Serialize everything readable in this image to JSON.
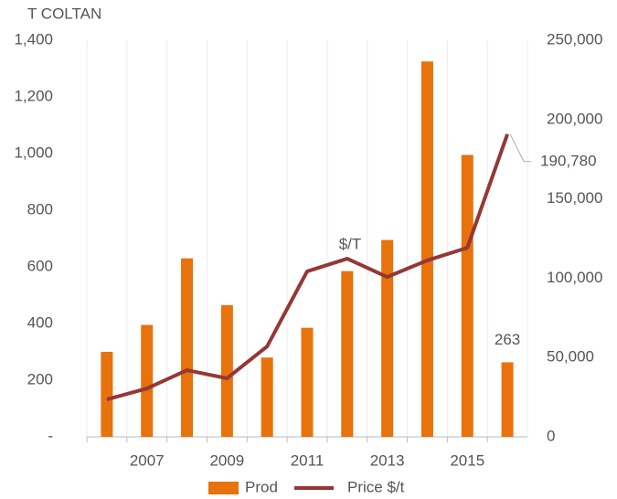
{
  "chart_data": {
    "type": "bar",
    "y_axis_label": "T COLTAN",
    "annotation": "$/T",
    "categories": [
      null,
      "2007",
      null,
      "2009",
      null,
      "2011",
      null,
      "2013",
      null,
      "2015",
      null
    ],
    "series": [
      {
        "name": "Prod",
        "type": "bar",
        "color": "#e8720c",
        "values": [
          300,
          395,
          630,
          465,
          280,
          385,
          585,
          695,
          1325,
          995,
          263
        ],
        "value_labels": [
          null,
          null,
          null,
          null,
          null,
          null,
          null,
          null,
          null,
          null,
          "263"
        ]
      },
      {
        "name": "Price $/t",
        "type": "line",
        "axis": "y2",
        "color": "#953735",
        "values": [
          23600,
          30500,
          42000,
          36900,
          57000,
          104300,
          112300,
          100800,
          111200,
          119200,
          190780
        ],
        "value_labels": [
          null,
          null,
          null,
          null,
          null,
          null,
          null,
          null,
          null,
          null,
          "190,780"
        ]
      }
    ],
    "ylim": [
      0,
      1400
    ],
    "yticks": [
      {
        "value": 0,
        "label": "-"
      },
      200,
      400,
      600,
      800,
      {
        "value": 1000,
        "label": "1,000"
      },
      {
        "value": 1200,
        "label": "1,200"
      },
      {
        "value": 1400,
        "label": "1,400"
      }
    ],
    "y2lim": [
      0,
      250000
    ],
    "y2ticks": [
      0,
      {
        "value": 50000,
        "label": "50,000"
      },
      {
        "value": 100000,
        "label": "100,000"
      },
      {
        "value": 150000,
        "label": "150,000"
      },
      {
        "value": 200000,
        "label": "200,000"
      },
      {
        "value": 250000,
        "label": "250,000"
      }
    ],
    "legend": "bottom"
  }
}
